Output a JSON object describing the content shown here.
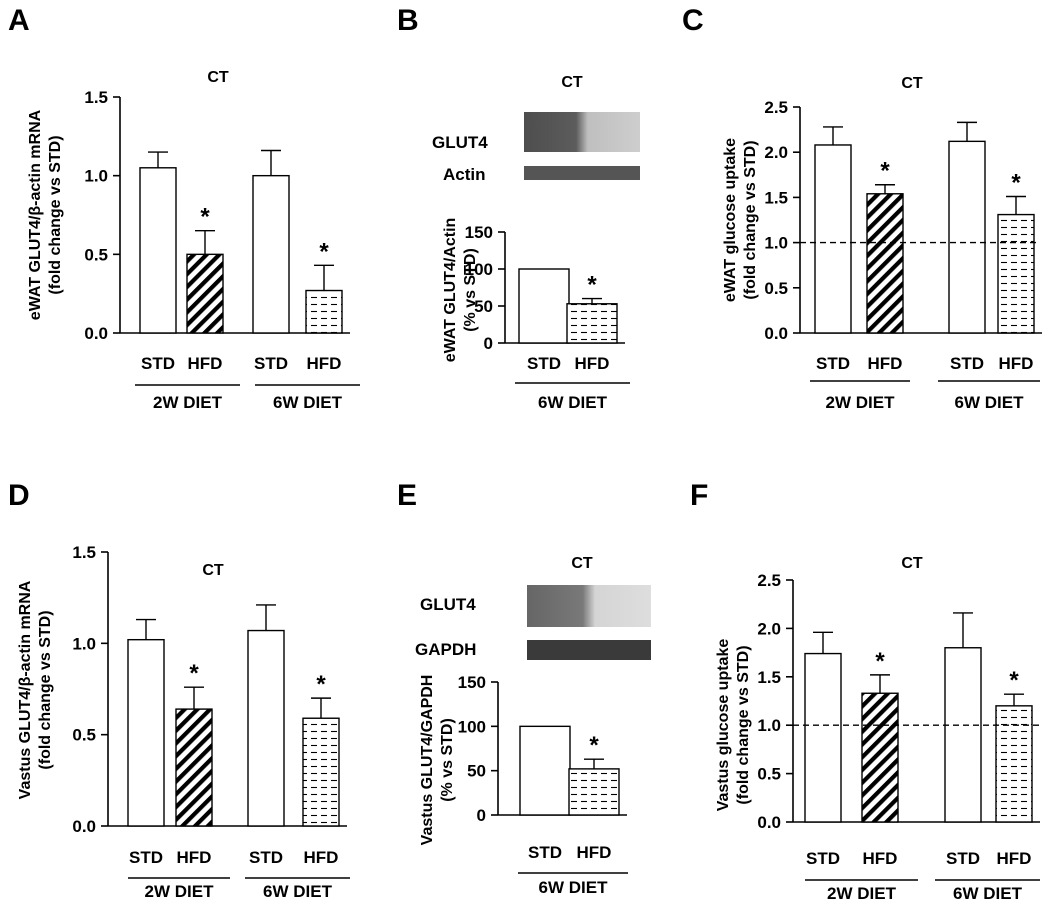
{
  "chart_data": [
    {
      "panel": "A",
      "type": "bar",
      "title": "CT",
      "ylabel": [
        "eWAT GLUT4/β-actin mRNA",
        "(fold change vs STD)"
      ],
      "ylim": [
        0,
        1.5
      ],
      "yticks": [
        "0.0",
        "0.5",
        "1.0",
        "1.5"
      ],
      "tick_values": [
        0,
        0.5,
        1.0,
        1.5
      ],
      "groups": [
        {
          "label": "2W DIET",
          "bars": [
            {
              "category": "STD",
              "value": 1.05,
              "error": 0.1,
              "pattern": "open",
              "sig": ""
            },
            {
              "category": "HFD",
              "value": 0.5,
              "error": 0.15,
              "pattern": "hatch",
              "sig": "*"
            }
          ]
        },
        {
          "label": "6W DIET",
          "bars": [
            {
              "category": "STD",
              "value": 1.0,
              "error": 0.16,
              "pattern": "open",
              "sig": ""
            },
            {
              "category": "HFD",
              "value": 0.27,
              "error": 0.16,
              "pattern": "dash",
              "sig": "*"
            }
          ]
        }
      ],
      "reference_line": null
    },
    {
      "panel": "B",
      "type": "bar",
      "title": "CT",
      "blot_labels": [
        "GLUT4",
        "Actin"
      ],
      "ylabel": [
        "eWAT GLUT4/Actin",
        "(% vs STD)"
      ],
      "ylim": [
        0,
        150
      ],
      "yticks": [
        "0",
        "50",
        "100",
        "150"
      ],
      "tick_values": [
        0,
        50,
        100,
        150
      ],
      "groups": [
        {
          "label": "6W DIET",
          "bars": [
            {
              "category": "STD",
              "value": 100,
              "error": 0,
              "pattern": "open",
              "sig": ""
            },
            {
              "category": "HFD",
              "value": 53,
              "error": 7,
              "pattern": "dash",
              "sig": "*"
            }
          ]
        }
      ],
      "reference_line": null
    },
    {
      "panel": "C",
      "type": "bar",
      "title": "CT",
      "ylabel": [
        "eWAT glucose uptake",
        "(fold change vs STD)"
      ],
      "ylim": [
        0,
        2.5
      ],
      "yticks": [
        "0.0",
        "0.5",
        "1.0",
        "1.5",
        "2.0",
        "2.5"
      ],
      "tick_values": [
        0,
        0.5,
        1.0,
        1.5,
        2.0,
        2.5
      ],
      "groups": [
        {
          "label": "2W DIET",
          "bars": [
            {
              "category": "STD",
              "value": 2.08,
              "error": 0.2,
              "pattern": "open",
              "sig": ""
            },
            {
              "category": "HFD",
              "value": 1.54,
              "error": 0.1,
              "pattern": "hatch",
              "sig": "*"
            }
          ]
        },
        {
          "label": "6W DIET",
          "bars": [
            {
              "category": "STD",
              "value": 2.12,
              "error": 0.21,
              "pattern": "open",
              "sig": ""
            },
            {
              "category": "HFD",
              "value": 1.31,
              "error": 0.2,
              "pattern": "dash",
              "sig": "*"
            }
          ]
        }
      ],
      "reference_line": 1.0
    },
    {
      "panel": "D",
      "type": "bar",
      "title": "CT",
      "ylabel": [
        "Vastus GLUT4/β-actin mRNA",
        "(fold change vs STD)"
      ],
      "ylim": [
        0,
        1.5
      ],
      "yticks": [
        "0.0",
        "0.5",
        "1.0",
        "1.5"
      ],
      "tick_values": [
        0,
        0.5,
        1.0,
        1.5
      ],
      "groups": [
        {
          "label": "2W DIET",
          "bars": [
            {
              "category": "STD",
              "value": 1.02,
              "error": 0.11,
              "pattern": "open",
              "sig": ""
            },
            {
              "category": "HFD",
              "value": 0.64,
              "error": 0.12,
              "pattern": "hatch",
              "sig": "*"
            }
          ]
        },
        {
          "label": "6W DIET",
          "bars": [
            {
              "category": "STD",
              "value": 1.07,
              "error": 0.14,
              "pattern": "open",
              "sig": ""
            },
            {
              "category": "HFD",
              "value": 0.59,
              "error": 0.11,
              "pattern": "dash",
              "sig": "*"
            }
          ]
        }
      ],
      "reference_line": null
    },
    {
      "panel": "E",
      "type": "bar",
      "title": "CT",
      "blot_labels": [
        "GLUT4",
        "GAPDH"
      ],
      "ylabel": [
        "Vastus GLUT4/GAPDH",
        "(% vs STD)"
      ],
      "ylim": [
        0,
        150
      ],
      "yticks": [
        "0",
        "50",
        "100",
        "150"
      ],
      "tick_values": [
        0,
        50,
        100,
        150
      ],
      "groups": [
        {
          "label": "6W DIET",
          "bars": [
            {
              "category": "STD",
              "value": 100,
              "error": 0,
              "pattern": "open",
              "sig": ""
            },
            {
              "category": "HFD",
              "value": 52,
              "error": 11,
              "pattern": "dash",
              "sig": "*"
            }
          ]
        }
      ],
      "reference_line": null
    },
    {
      "panel": "F",
      "type": "bar",
      "title": "CT",
      "ylabel": [
        "Vastus glucose uptake",
        "(fold change vs STD)"
      ],
      "ylim": [
        0,
        2.5
      ],
      "yticks": [
        "0.0",
        "0.5",
        "1.0",
        "1.5",
        "2.0",
        "2.5"
      ],
      "tick_values": [
        0,
        0.5,
        1.0,
        1.5,
        2.0,
        2.5
      ],
      "groups": [
        {
          "label": "2W DIET",
          "bars": [
            {
              "category": "STD",
              "value": 1.74,
              "error": 0.22,
              "pattern": "open",
              "sig": ""
            },
            {
              "category": "HFD",
              "value": 1.33,
              "error": 0.19,
              "pattern": "hatch",
              "sig": "*"
            }
          ]
        },
        {
          "label": "6W DIET",
          "bars": [
            {
              "category": "STD",
              "value": 1.8,
              "error": 0.36,
              "pattern": "open",
              "sig": ""
            },
            {
              "category": "HFD",
              "value": 1.2,
              "error": 0.12,
              "pattern": "dash",
              "sig": "*"
            }
          ]
        }
      ],
      "reference_line": 1.0
    }
  ]
}
